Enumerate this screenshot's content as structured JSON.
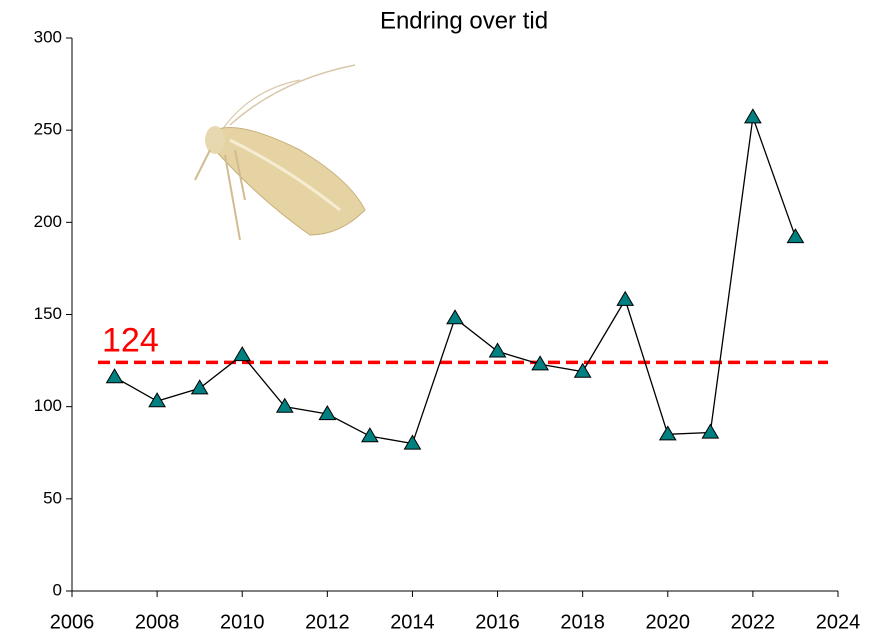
{
  "chart_data": {
    "type": "line",
    "title": "Endring over tid",
    "x": [
      2007,
      2008,
      2009,
      2010,
      2011,
      2012,
      2013,
      2014,
      2015,
      2016,
      2017,
      2018,
      2019,
      2020,
      2021,
      2022,
      2023
    ],
    "values": [
      116,
      103,
      110,
      128,
      100,
      96,
      84,
      80,
      148,
      130,
      123,
      119,
      158,
      85,
      86,
      257,
      192
    ],
    "color": "#008080",
    "line_color": "#000000",
    "reference_line": 124,
    "reference_color": "#ff0000",
    "xlim": [
      2006,
      2024
    ],
    "xticks": [
      2006,
      2008,
      2010,
      2012,
      2014,
      2016,
      2018,
      2020,
      2022,
      2024
    ],
    "ylim": [
      0,
      300
    ],
    "yticks": [
      0,
      50,
      100,
      150,
      200,
      250,
      300
    ],
    "grid": false
  }
}
